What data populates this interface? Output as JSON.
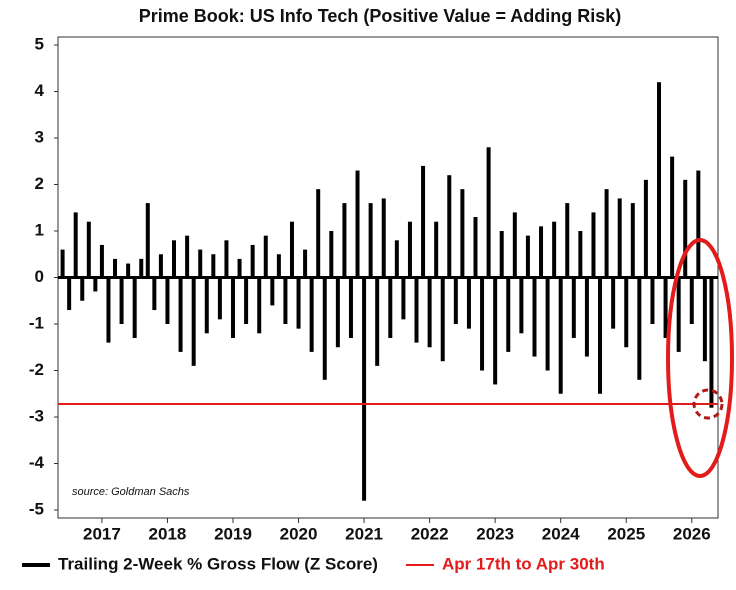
{
  "chart_data": {
    "type": "bar",
    "title": "Prime Book: US Info Tech (Positive Value = Adding Risk)",
    "source": "source: Goldman Sachs",
    "xlim": [
      2016.33,
      2026.4
    ],
    "xticks": [
      2017,
      2018,
      2019,
      2020,
      2021,
      2022,
      2023,
      2024,
      2025,
      2026
    ],
    "ylim": [
      -5,
      5
    ],
    "yticks": [
      5,
      4,
      3,
      2,
      1,
      0,
      -1,
      -2,
      -3,
      -4,
      -5
    ],
    "series": [
      {
        "name": "Trailing 2-Week % Gross Flow (Z Score)",
        "color": "#000000",
        "x": [
          2016.4,
          2016.5,
          2016.6,
          2016.7,
          2016.8,
          2016.9,
          2017.0,
          2017.1,
          2017.2,
          2017.3,
          2017.4,
          2017.5,
          2017.6,
          2017.7,
          2017.8,
          2017.9,
          2018.0,
          2018.1,
          2018.2,
          2018.3,
          2018.4,
          2018.5,
          2018.6,
          2018.7,
          2018.8,
          2018.9,
          2019.0,
          2019.1,
          2019.2,
          2019.3,
          2019.4,
          2019.5,
          2019.6,
          2019.7,
          2019.8,
          2019.9,
          2020.0,
          2020.1,
          2020.2,
          2020.3,
          2020.4,
          2020.5,
          2020.6,
          2020.7,
          2020.8,
          2020.9,
          2021.0,
          2021.1,
          2021.2,
          2021.3,
          2021.4,
          2021.5,
          2021.6,
          2021.7,
          2021.8,
          2021.9,
          2022.0,
          2022.1,
          2022.2,
          2022.3,
          2022.4,
          2022.5,
          2022.6,
          2022.7,
          2022.8,
          2022.9,
          2023.0,
          2023.1,
          2023.2,
          2023.3,
          2023.4,
          2023.5,
          2023.6,
          2023.7,
          2023.8,
          2023.9,
          2024.0,
          2024.1,
          2024.2,
          2024.3,
          2024.4,
          2024.5,
          2024.6,
          2024.7,
          2024.8,
          2024.9,
          2025.0,
          2025.1,
          2025.2,
          2025.3,
          2025.4,
          2025.5,
          2025.6,
          2025.7,
          2025.8,
          2025.9,
          2026.0,
          2026.1,
          2026.2,
          2026.3
        ],
        "values": [
          0.6,
          -0.7,
          1.4,
          -0.5,
          1.2,
          -0.3,
          0.7,
          -1.4,
          0.4,
          -1.0,
          0.3,
          -1.3,
          0.4,
          1.6,
          -0.7,
          0.5,
          -1.0,
          0.8,
          -1.6,
          0.9,
          -1.9,
          0.6,
          -1.2,
          0.5,
          -0.9,
          0.8,
          -1.3,
          0.4,
          -1.0,
          0.7,
          -1.2,
          0.9,
          -0.6,
          0.5,
          -1.0,
          1.2,
          -1.1,
          0.6,
          -1.6,
          1.9,
          -2.2,
          1.0,
          -1.5,
          1.6,
          -1.3,
          2.3,
          -4.8,
          1.6,
          -1.9,
          1.7,
          -1.3,
          0.8,
          -0.9,
          1.2,
          -1.4,
          2.4,
          -1.5,
          1.2,
          -1.8,
          2.2,
          -1.0,
          1.9,
          -1.1,
          1.3,
          -2.0,
          2.8,
          -2.3,
          1.0,
          -1.6,
          1.4,
          -1.2,
          0.9,
          -1.7,
          1.1,
          -2.0,
          1.2,
          -2.5,
          1.6,
          -1.3,
          1.0,
          -1.7,
          1.4,
          -2.5,
          1.9,
          -1.1,
          1.7,
          -1.5,
          1.6,
          -2.2,
          2.1,
          -1.0,
          4.2,
          -1.3,
          2.6,
          -1.6,
          2.1,
          -1.0,
          2.3,
          -1.8,
          -2.8
        ]
      }
    ],
    "reference_lines": [
      {
        "name": "Apr 17th to Apr 30th",
        "value": -2.72,
        "color": "#e31b1b"
      }
    ]
  }
}
